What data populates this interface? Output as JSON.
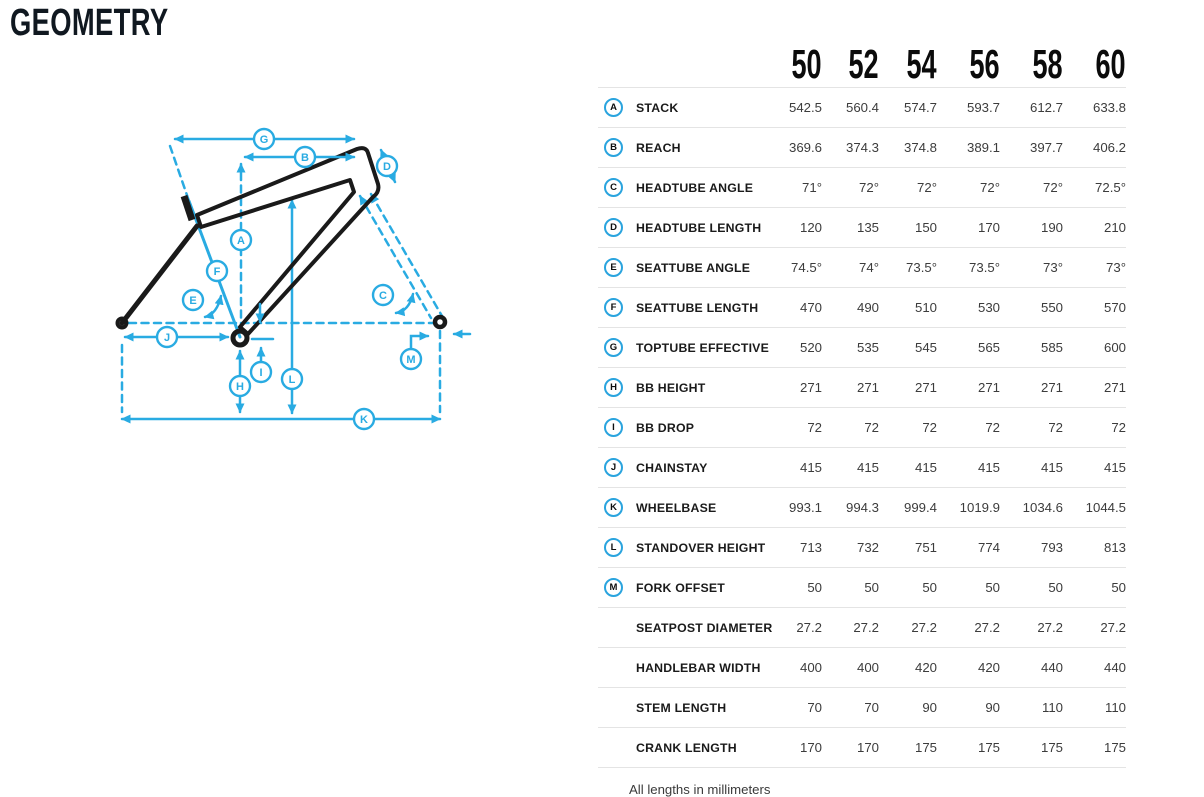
{
  "page": {
    "title": "GEOMETRY",
    "footnote": "All lengths in millimeters"
  },
  "colors": {
    "accent": "#29abe2",
    "frame": "#1a1a1a",
    "divider": "#e4e4e4",
    "heading_text": "#101820"
  },
  "diagram": {
    "badge_letters": {
      "a": "A",
      "b": "B",
      "c": "C",
      "d": "D",
      "e": "E",
      "f": "F",
      "g": "G",
      "h": "H",
      "i": "I",
      "j": "J",
      "k": "K",
      "l": "L",
      "m": "M"
    }
  },
  "table": {
    "sizes": [
      "50",
      "52",
      "54",
      "56",
      "58",
      "60"
    ],
    "rows": [
      {
        "letter": "A",
        "label": "STACK",
        "values": [
          "542.5",
          "560.4",
          "574.7",
          "593.7",
          "612.7",
          "633.8"
        ]
      },
      {
        "letter": "B",
        "label": "REACH",
        "values": [
          "369.6",
          "374.3",
          "374.8",
          "389.1",
          "397.7",
          "406.2"
        ]
      },
      {
        "letter": "C",
        "label": "HEADTUBE ANGLE",
        "values": [
          "71°",
          "72°",
          "72°",
          "72°",
          "72°",
          "72.5°"
        ]
      },
      {
        "letter": "D",
        "label": "HEADTUBE LENGTH",
        "values": [
          "120",
          "135",
          "150",
          "170",
          "190",
          "210"
        ]
      },
      {
        "letter": "E",
        "label": "SEATTUBE ANGLE",
        "values": [
          "74.5°",
          "74°",
          "73.5°",
          "73.5°",
          "73°",
          "73°"
        ]
      },
      {
        "letter": "F",
        "label": "SEATTUBE LENGTH",
        "values": [
          "470",
          "490",
          "510",
          "530",
          "550",
          "570"
        ]
      },
      {
        "letter": "G",
        "label": "TOPTUBE EFFECTIVE",
        "values": [
          "520",
          "535",
          "545",
          "565",
          "585",
          "600"
        ]
      },
      {
        "letter": "H",
        "label": "BB HEIGHT",
        "values": [
          "271",
          "271",
          "271",
          "271",
          "271",
          "271"
        ]
      },
      {
        "letter": "I",
        "label": "BB DROP",
        "values": [
          "72",
          "72",
          "72",
          "72",
          "72",
          "72"
        ]
      },
      {
        "letter": "J",
        "label": "CHAINSTAY",
        "values": [
          "415",
          "415",
          "415",
          "415",
          "415",
          "415"
        ]
      },
      {
        "letter": "K",
        "label": "WHEELBASE",
        "values": [
          "993.1",
          "994.3",
          "999.4",
          "1019.9",
          "1034.6",
          "1044.5"
        ]
      },
      {
        "letter": "L",
        "label": "STANDOVER HEIGHT",
        "values": [
          "713",
          "732",
          "751",
          "774",
          "793",
          "813"
        ]
      },
      {
        "letter": "M",
        "label": "FORK OFFSET",
        "values": [
          "50",
          "50",
          "50",
          "50",
          "50",
          "50"
        ]
      },
      {
        "letter": null,
        "label": "SEATPOST DIAMETER",
        "values": [
          "27.2",
          "27.2",
          "27.2",
          "27.2",
          "27.2",
          "27.2"
        ]
      },
      {
        "letter": null,
        "label": "HANDLEBAR WIDTH",
        "values": [
          "400",
          "400",
          "420",
          "420",
          "440",
          "440"
        ]
      },
      {
        "letter": null,
        "label": "STEM LENGTH",
        "values": [
          "70",
          "70",
          "90",
          "90",
          "110",
          "110"
        ]
      },
      {
        "letter": null,
        "label": "CRANK LENGTH",
        "values": [
          "170",
          "170",
          "175",
          "175",
          "175",
          "175"
        ]
      }
    ]
  }
}
